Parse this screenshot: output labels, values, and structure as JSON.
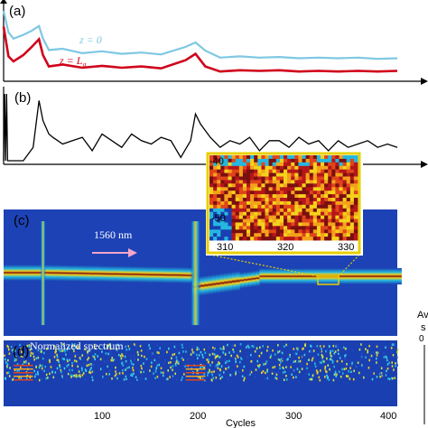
{
  "panels": {
    "a": {
      "label": "(a)",
      "curve1_label": "z = 0",
      "curve2_label": "z = L",
      "curve2_label_sub": "a"
    },
    "b": {
      "label": "(b)"
    },
    "c": {
      "label": "(c)",
      "annotation": "1560 nm"
    },
    "d": {
      "label": "(d)",
      "annotation": "Normalized spectrum"
    }
  },
  "inset": {
    "x_ticks": [
      "310",
      "320",
      "330"
    ],
    "y_ticks": [
      "-40",
      "-50"
    ]
  },
  "x_axis": {
    "title": "Cycles",
    "ticks": [
      "100",
      "200",
      "300",
      "400"
    ]
  },
  "edge_text": {
    "top": "Av",
    "mid": "s",
    "symbol": "0"
  },
  "colors": {
    "z0_curve": "#7ec8e3",
    "zLa_curve": "#d0021b",
    "panel_b_curve": "#000000",
    "inset_frame": "#e8d000",
    "annotation_arrow": "#f3a6c8",
    "spectrogram_background": "#1a3fb0"
  },
  "chart_data": [
    {
      "type": "line",
      "panel": "a",
      "x": [
        0,
        5,
        10,
        20,
        28,
        36,
        40,
        46,
        60,
        80,
        100,
        120,
        140,
        160,
        185,
        195,
        205,
        220,
        240,
        260,
        280,
        300,
        320,
        340,
        360,
        380,
        400
      ],
      "series": [
        {
          "name": "z = 0",
          "values": [
            1.0,
            0.66,
            0.56,
            0.62,
            0.68,
            0.76,
            0.56,
            0.38,
            0.4,
            0.33,
            0.36,
            0.32,
            0.34,
            0.31,
            0.43,
            0.5,
            0.37,
            0.26,
            0.28,
            0.26,
            0.27,
            0.25,
            0.26,
            0.25,
            0.26,
            0.24,
            0.25
          ]
        },
        {
          "name": "z = La",
          "values": [
            0.75,
            0.28,
            0.2,
            0.3,
            0.42,
            0.55,
            0.3,
            0.12,
            0.15,
            0.1,
            0.13,
            0.1,
            0.12,
            0.09,
            0.22,
            0.32,
            0.12,
            0.04,
            0.06,
            0.05,
            0.06,
            0.04,
            0.05,
            0.04,
            0.05,
            0.04,
            0.05
          ]
        }
      ]
    },
    {
      "type": "line",
      "panel": "b",
      "x": [
        0,
        1,
        2,
        3,
        4,
        6,
        10,
        20,
        30,
        36,
        40,
        46,
        50,
        60,
        70,
        80,
        90,
        100,
        110,
        120,
        130,
        140,
        150,
        160,
        170,
        180,
        190,
        195,
        200,
        210,
        220,
        230,
        240,
        250,
        260,
        270,
        280,
        290,
        300,
        310,
        320,
        330,
        340,
        350,
        360,
        370,
        380,
        390,
        400
      ],
      "values": [
        0.0,
        1.0,
        0.0,
        1.0,
        0.0,
        0.0,
        0.0,
        0.0,
        0.2,
        0.9,
        0.6,
        0.4,
        0.35,
        0.25,
        0.3,
        0.35,
        0.15,
        0.4,
        0.3,
        0.2,
        0.4,
        0.3,
        0.25,
        0.35,
        0.3,
        0.05,
        0.3,
        0.7,
        0.55,
        0.35,
        0.2,
        0.3,
        0.25,
        0.35,
        0.15,
        0.3,
        0.3,
        0.2,
        0.35,
        0.25,
        0.3,
        0.15,
        0.3,
        0.2,
        0.25,
        0.3,
        0.2,
        0.25,
        0.2
      ]
    },
    {
      "type": "heatmap",
      "panel": "c",
      "xlabel": "",
      "xlim": [
        0,
        400
      ]
    },
    {
      "type": "heatmap",
      "panel": "c-inset",
      "xlim": [
        310,
        330
      ],
      "ylim": [
        -55,
        -40
      ]
    },
    {
      "type": "heatmap",
      "panel": "d",
      "xlabel": "Cycles",
      "xlim": [
        0,
        400
      ]
    }
  ]
}
